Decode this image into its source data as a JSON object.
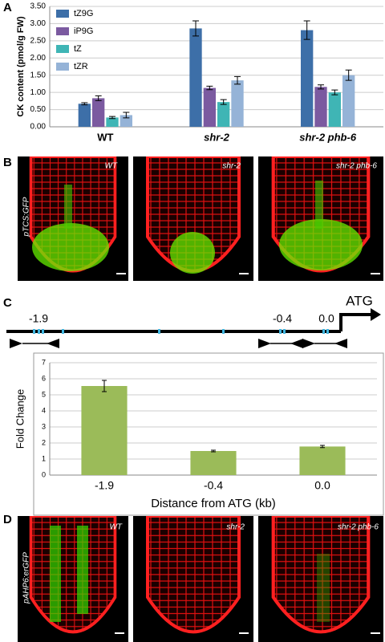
{
  "panels": {
    "a": "A",
    "b": "B",
    "c": "C",
    "d": "D"
  },
  "panel_b": {
    "labels": [
      "WT",
      "shr-2",
      "shr-2 phb-6"
    ],
    "reporter": "pTCS:GFP"
  },
  "promoter": {
    "labels": [
      "-1.9",
      "-0.4",
      "0.0"
    ],
    "start": "ATG"
  },
  "panel_d": {
    "labels": [
      "WT",
      "shr-2",
      "shr-2 phb-6"
    ],
    "reporter": "pAHP6:erGFP"
  },
  "chart_data": [
    {
      "type": "bar",
      "ylabel": "CK content (pmol/g FW)",
      "categories": [
        "WT",
        "shr-2",
        "shr-2 phb-6"
      ],
      "series": [
        {
          "name": "tZ9G",
          "color": "#3d6fa8",
          "values": [
            0.67,
            2.86,
            2.81
          ],
          "errors": [
            0.03,
            0.22,
            0.27
          ]
        },
        {
          "name": "iP9G",
          "color": "#7b5aa0",
          "values": [
            0.83,
            1.13,
            1.16
          ],
          "errors": [
            0.07,
            0.05,
            0.06
          ]
        },
        {
          "name": "tZ",
          "color": "#3fb5b5",
          "values": [
            0.27,
            0.72,
            1.0
          ],
          "errors": [
            0.03,
            0.07,
            0.07
          ]
        },
        {
          "name": "tZR",
          "color": "#95b3d7",
          "values": [
            0.34,
            1.35,
            1.5
          ],
          "errors": [
            0.08,
            0.11,
            0.15
          ]
        }
      ],
      "ylim": [
        0,
        3.5
      ],
      "yticks": [
        {
          "value": 0,
          "label": "0.00"
        },
        {
          "value": 0.5,
          "label": "0.50"
        },
        {
          "value": 1,
          "label": "1.00"
        },
        {
          "value": 1.5,
          "label": "1.50"
        },
        {
          "value": 2,
          "label": "2.00"
        },
        {
          "value": 2.5,
          "label": "2.50"
        },
        {
          "value": 3,
          "label": "3.00"
        },
        {
          "value": 3.5,
          "label": "3.50"
        }
      ],
      "grid": true
    },
    {
      "type": "bar",
      "ylabel": "Fold Change",
      "xlabel": "Distance from ATG (kb)",
      "categories": [
        "-1.9",
        "-0.4",
        "0.0"
      ],
      "values": [
        5.55,
        1.5,
        1.78
      ],
      "errors": [
        0.35,
        0.05,
        0.07
      ],
      "color": "#9bbb59",
      "ylim": [
        0,
        7
      ],
      "yticks": [
        0,
        1,
        2,
        3,
        4,
        5,
        6,
        7
      ],
      "grid": true
    }
  ]
}
